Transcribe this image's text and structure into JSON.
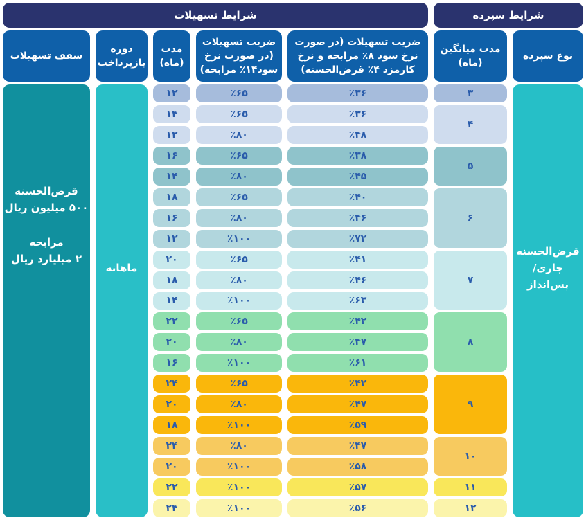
{
  "header": {
    "facilities": "شرایط تسهیلات",
    "deposit": "شرایط سپرده"
  },
  "columns": {
    "deposit_type": "نوع سپرده",
    "avg_duration": "مدت میانگین (ماه)",
    "ratio8": "ضریب تسهیلات (در صورت نرخ سود ۸٪ مرابحه و نرخ کارمزد ۴٪ قرض‌الحسنه)",
    "ratio14": "ضریب تسهیلات (در صورت نرخ سود۱۴٪ مرابحه)",
    "duration": "مدت (ماه)",
    "repayment": "دوره بازپرداخت",
    "ceiling": "سقف تسهیلات"
  },
  "side": {
    "ceiling_qarz": "قرض‌الحسنه\n۵۰۰ میلیون ریال",
    "ceiling_morabaha": "مرابحه\n۲ میلیارد ریال",
    "repayment": "ماهانه",
    "deposit_type": "قرض‌الحسنه\nجاری/پس‌انداز"
  },
  "colors": {
    "navy_header": "#2a336e",
    "blue_header": "#0f60a9",
    "ceiling_column": "#11909e",
    "teal_column": "#29bfc7",
    "deposit_column": "#26bfc7",
    "cell_text": "#2a5cab"
  },
  "groups": [
    {
      "months": "۳",
      "color": "#a6bcdc",
      "rows": [
        {
          "duration": "۱۲",
          "ratio14": "٪۶۵",
          "ratio8": "٪۳۶"
        }
      ]
    },
    {
      "months": "۴",
      "color": "#cfdcee",
      "rows": [
        {
          "duration": "۱۴",
          "ratio14": "٪۶۵",
          "ratio8": "٪۳۶"
        },
        {
          "duration": "۱۲",
          "ratio14": "٪۸۰",
          "ratio8": "٪۴۸"
        }
      ]
    },
    {
      "months": "۵",
      "color": "#8fc3cb",
      "rows": [
        {
          "duration": "۱۶",
          "ratio14": "٪۶۵",
          "ratio8": "٪۳۸"
        },
        {
          "duration": "۱۴",
          "ratio14": "٪۸۰",
          "ratio8": "٪۴۵"
        }
      ]
    },
    {
      "months": "۶",
      "color": "#b1d6dd",
      "rows": [
        {
          "duration": "۱۸",
          "ratio14": "٪۶۵",
          "ratio8": "٪۴۰"
        },
        {
          "duration": "۱۶",
          "ratio14": "٪۸۰",
          "ratio8": "٪۴۶"
        },
        {
          "duration": "۱۲",
          "ratio14": "٪۱۰۰",
          "ratio8": "٪۷۲"
        }
      ]
    },
    {
      "months": "۷",
      "color": "#c8e9ec",
      "rows": [
        {
          "duration": "۲۰",
          "ratio14": "٪۶۵",
          "ratio8": "٪۴۱"
        },
        {
          "duration": "۱۸",
          "ratio14": "٪۸۰",
          "ratio8": "٪۴۶"
        },
        {
          "duration": "۱۴",
          "ratio14": "٪۱۰۰",
          "ratio8": "٪۶۳"
        }
      ]
    },
    {
      "months": "۸",
      "color": "#90dfae",
      "rows": [
        {
          "duration": "۲۲",
          "ratio14": "٪۶۵",
          "ratio8": "٪۴۲"
        },
        {
          "duration": "۲۰",
          "ratio14": "٪۸۰",
          "ratio8": "٪۴۷"
        },
        {
          "duration": "۱۶",
          "ratio14": "٪۱۰۰",
          "ratio8": "٪۶۱"
        }
      ]
    },
    {
      "months": "۹",
      "color": "#fab70b",
      "rows": [
        {
          "duration": "۲۴",
          "ratio14": "٪۶۵",
          "ratio8": "٪۴۲"
        },
        {
          "duration": "۲۰",
          "ratio14": "٪۸۰",
          "ratio8": "٪۴۷"
        },
        {
          "duration": "۱۸",
          "ratio14": "٪۱۰۰",
          "ratio8": "٪۵۹"
        }
      ]
    },
    {
      "months": "۱۰",
      "color": "#f7ca5f",
      "rows": [
        {
          "duration": "۲۴",
          "ratio14": "٪۸۰",
          "ratio8": "٪۴۷"
        },
        {
          "duration": "۲۰",
          "ratio14": "٪۱۰۰",
          "ratio8": "٪۵۸"
        }
      ]
    },
    {
      "months": "۱۱",
      "color": "#f9e75a",
      "rows": [
        {
          "duration": "۲۲",
          "ratio14": "٪۱۰۰",
          "ratio8": "٪۵۷"
        }
      ]
    },
    {
      "months": "۱۲",
      "color": "#fbf4ab",
      "rows": [
        {
          "duration": "۲۴",
          "ratio14": "٪۱۰۰",
          "ratio8": "٪۵۶"
        }
      ]
    }
  ],
  "chart_data": {
    "type": "table",
    "title": "شرایط تسهیلات / شرایط سپرده",
    "columns": [
      "نوع سپرده",
      "مدت میانگین (ماه)",
      "ضریب تسهیلات (در صورت نرخ سود ۸٪ مرابحه و نرخ کارمزد ۴٪ قرض‌الحسنه)",
      "ضریب تسهیلات (در صورت نرخ سود۱۴٪ مرابحه)",
      "مدت (ماه)",
      "دوره بازپرداخت",
      "سقف تسهیلات"
    ],
    "deposit_type": "قرض‌الحسنه جاری/پس‌انداز",
    "repayment_period": "ماهانه",
    "facility_ceiling": [
      "قرض‌الحسنه ۵۰۰ میلیون ریال",
      "مرابحه ۲ میلیارد ریال"
    ],
    "rows": [
      {
        "avg_months": 3,
        "duration_months": 12,
        "ratio_14pct": 65,
        "ratio_8pct": 36
      },
      {
        "avg_months": 4,
        "duration_months": 14,
        "ratio_14pct": 65,
        "ratio_8pct": 36
      },
      {
        "avg_months": 4,
        "duration_months": 12,
        "ratio_14pct": 80,
        "ratio_8pct": 48
      },
      {
        "avg_months": 5,
        "duration_months": 16,
        "ratio_14pct": 65,
        "ratio_8pct": 38
      },
      {
        "avg_months": 5,
        "duration_months": 14,
        "ratio_14pct": 80,
        "ratio_8pct": 45
      },
      {
        "avg_months": 6,
        "duration_months": 18,
        "ratio_14pct": 65,
        "ratio_8pct": 40
      },
      {
        "avg_months": 6,
        "duration_months": 16,
        "ratio_14pct": 80,
        "ratio_8pct": 46
      },
      {
        "avg_months": 6,
        "duration_months": 12,
        "ratio_14pct": 100,
        "ratio_8pct": 72
      },
      {
        "avg_months": 7,
        "duration_months": 20,
        "ratio_14pct": 65,
        "ratio_8pct": 41
      },
      {
        "avg_months": 7,
        "duration_months": 18,
        "ratio_14pct": 80,
        "ratio_8pct": 46
      },
      {
        "avg_months": 7,
        "duration_months": 14,
        "ratio_14pct": 100,
        "ratio_8pct": 63
      },
      {
        "avg_months": 8,
        "duration_months": 22,
        "ratio_14pct": 65,
        "ratio_8pct": 42
      },
      {
        "avg_months": 8,
        "duration_months": 20,
        "ratio_14pct": 80,
        "ratio_8pct": 47
      },
      {
        "avg_months": 8,
        "duration_months": 16,
        "ratio_14pct": 100,
        "ratio_8pct": 61
      },
      {
        "avg_months": 9,
        "duration_months": 24,
        "ratio_14pct": 65,
        "ratio_8pct": 42
      },
      {
        "avg_months": 9,
        "duration_months": 20,
        "ratio_14pct": 80,
        "ratio_8pct": 47
      },
      {
        "avg_months": 9,
        "duration_months": 18,
        "ratio_14pct": 100,
        "ratio_8pct": 59
      },
      {
        "avg_months": 10,
        "duration_months": 24,
        "ratio_14pct": 80,
        "ratio_8pct": 47
      },
      {
        "avg_months": 10,
        "duration_months": 20,
        "ratio_14pct": 100,
        "ratio_8pct": 58
      },
      {
        "avg_months": 11,
        "duration_months": 22,
        "ratio_14pct": 100,
        "ratio_8pct": 57
      },
      {
        "avg_months": 12,
        "duration_months": 24,
        "ratio_14pct": 100,
        "ratio_8pct": 56
      }
    ]
  }
}
